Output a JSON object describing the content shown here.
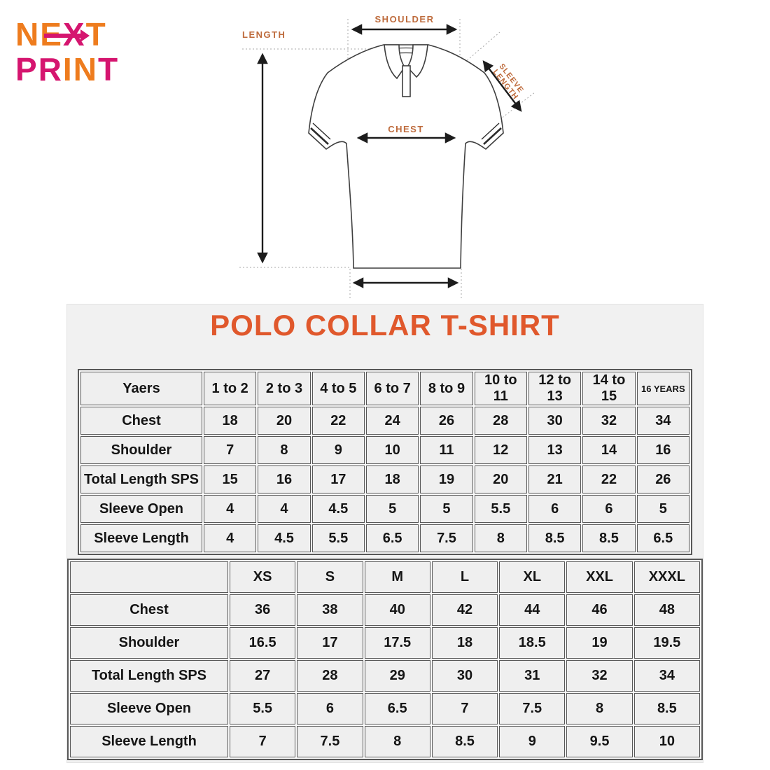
{
  "logo": {
    "line1": [
      {
        "ch": "N",
        "c": "orange"
      },
      {
        "ch": "E",
        "c": "orange"
      },
      {
        "ch": "X",
        "c": "magenta"
      },
      {
        "ch": "T",
        "c": "orange"
      }
    ],
    "line2": [
      {
        "ch": "P",
        "c": "magenta"
      },
      {
        "ch": "R",
        "c": "magenta"
      },
      {
        "ch": "I",
        "c": "orange"
      },
      {
        "ch": "N",
        "c": "orange"
      },
      {
        "ch": "T",
        "c": "magenta"
      }
    ]
  },
  "diagram": {
    "labels": {
      "length": "LENGTH",
      "shoulder": "SHOULDER",
      "chest": "CHEST",
      "sleeve_line1": "SLEEVE",
      "sleeve_line2": "LENGTH"
    }
  },
  "size_chart": {
    "title": "POLO COLLAR T-SHIRT",
    "kids_table": {
      "header": [
        {
          "label": "Yaers"
        },
        {
          "label": "1 to 2"
        },
        {
          "label": "2 to 3"
        },
        {
          "label": "4 to 5"
        },
        {
          "label": "6 to 7"
        },
        {
          "label": "8 to 9"
        },
        {
          "label": "10 to 11"
        },
        {
          "label": "12 to 13"
        },
        {
          "label": "14 to 15"
        },
        {
          "label": "16 YEARS",
          "small": true
        }
      ],
      "rows": [
        {
          "label": "Chest",
          "values": [
            "18",
            "20",
            "22",
            "24",
            "26",
            "28",
            "30",
            "32",
            "34"
          ]
        },
        {
          "label": "Shoulder",
          "values": [
            "7",
            "8",
            "9",
            "10",
            "11",
            "12",
            "13",
            "14",
            "16"
          ]
        },
        {
          "label": "Total Length SPS",
          "values": [
            "15",
            "16",
            "17",
            "18",
            "19",
            "20",
            "21",
            "22",
            "26"
          ]
        },
        {
          "label": "Sleeve Open",
          "values": [
            "4",
            "4",
            "4.5",
            "5",
            "5",
            "5.5",
            "6",
            "6",
            "5"
          ]
        },
        {
          "label": "Sleeve Length",
          "values": [
            "4",
            "4.5",
            "5.5",
            "6.5",
            "7.5",
            "8",
            "8.5",
            "8.5",
            "6.5"
          ]
        }
      ]
    },
    "adult_table": {
      "header": [
        {
          "label": ""
        },
        {
          "label": "XS"
        },
        {
          "label": "S"
        },
        {
          "label": "M"
        },
        {
          "label": "L"
        },
        {
          "label": "XL"
        },
        {
          "label": "XXL"
        },
        {
          "label": "XXXL"
        }
      ],
      "rows": [
        {
          "label": "Chest",
          "values": [
            "36",
            "38",
            "40",
            "42",
            "44",
            "46",
            "48"
          ]
        },
        {
          "label": "Shoulder",
          "values": [
            "16.5",
            "17",
            "17.5",
            "18",
            "18.5",
            "19",
            "19.5"
          ]
        },
        {
          "label": "Total Length SPS",
          "values": [
            "27",
            "28",
            "29",
            "30",
            "31",
            "32",
            "34"
          ]
        },
        {
          "label": "Sleeve Open",
          "values": [
            "5.5",
            "6",
            "6.5",
            "7",
            "7.5",
            "8",
            "8.5"
          ]
        },
        {
          "label": "Sleeve Length",
          "values": [
            "7",
            "7.5",
            "8",
            "8.5",
            "9",
            "9.5",
            "10"
          ]
        }
      ]
    }
  },
  "colors": {
    "logo_orange": "#EE7C1E",
    "logo_magenta": "#D5156F",
    "title_orange": "#E0582C",
    "diagram_label_orange": "#BE6B3C"
  }
}
